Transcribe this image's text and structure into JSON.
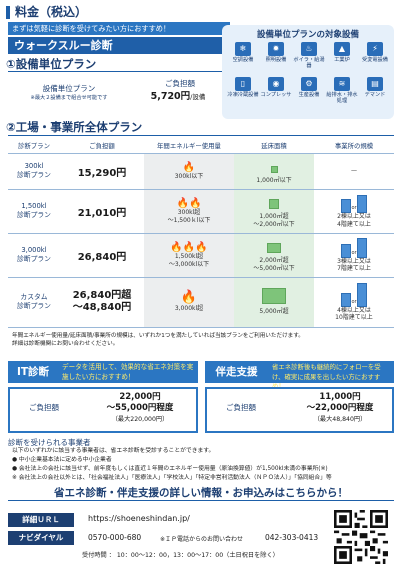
{
  "header": {
    "title": "料金（税込）"
  },
  "intro": "まずは気軽に診断を受けてみたい方におすすめ！",
  "walkthrough_title": "ウォークスルー診断",
  "sec1": {
    "title": "①設備単位プラン",
    "plan_name": "設備単位プラン",
    "plan_note": "※最大２設備まで組合せ可能です",
    "fee_label": "ご負担額",
    "fee": "5,720円",
    "fee_unit": "/設備"
  },
  "equipment": {
    "title": "設備単位プランの対象設備",
    "items": [
      "空調設備",
      "照明設備",
      "ボイラ・給湯器",
      "工業炉",
      "受変電設備",
      "冷凍冷蔵設備",
      "コンプレッサ",
      "生産設備",
      "給排水・排水処理",
      "デマンド"
    ]
  },
  "sec2": {
    "title": "②工場・事業所全体プラン",
    "headers": [
      "診断プラン",
      "ご負担額",
      "年間エネルギー使用量",
      "延床面積",
      "事業所の規模"
    ],
    "rows": [
      {
        "plan": "300kl\n診断プラン",
        "fee": "15,290円",
        "energy": "300kl以下",
        "area": "1,000㎡以下",
        "scale": "—"
      },
      {
        "plan": "1,500kl\n診断プラン",
        "fee": "21,010円",
        "energy": "300kl超\n～1,500ｋl以下",
        "area": "1,000㎡超\n～2,000㎡以下",
        "scale": "2棟以上又は\n4階建て以上"
      },
      {
        "plan": "3,000kl\n診断プラン",
        "fee": "26,840円",
        "energy": "1,500kl超\n～3,000kl以下",
        "area": "2,000㎡超\n～5,000㎡以下",
        "scale": "3棟以上又は\n7階建て以上"
      },
      {
        "plan": "カスタム\n診断プラン",
        "fee": "26,840円超\n～48,840円",
        "energy": "3,000kl超",
        "area": "5,000㎡超",
        "scale": "4棟以上又は\n10階建て以上"
      }
    ],
    "or_text": "or",
    "note": "年間エネルギー使用量/延床面積/事業所の規模は、いずれか1つを満たしていれば当該プランをご利用いただけます。\n詳細は診断機関にお問い合わせください。"
  },
  "it": {
    "tag": "IT診断",
    "desc": "データを活用して、効果的な省エネ対策を実施したい方におすすめ！",
    "fee_label": "ご負担額",
    "fee": "22,000円\n～55,000円程度",
    "max": "（最大220,000円）"
  },
  "bansou": {
    "tag": "伴走支援",
    "desc": "省エネ診断後も継続的にフォローを受け、確実に成果を出したい方におすすめ！",
    "fee_label": "ご負担額",
    "fee": "11,000円\n～22,000円程度",
    "max": "（最大48,840円）"
  },
  "business": {
    "title": "診断を受けられる事業者",
    "text": "以下のいずれかに該当する事業者は、省エネ診断を受診することができます。\n● 中小企業基本法に定める中小企業者\n● 会社法上の会社に該当せず、前年度もしくは直近１年間のエネルギー使用量（原油換算値）が1,500kl未満の事業所(※)\n※ 会社法上の会社以外とは、「社会福祉法人」「医療法人」「学校法人」「特定非営利活動法人（ＮＰＯ法人）」「協同組合」等"
  },
  "contact": {
    "cta": "省エネ診断・伴走支援の詳しい情報・お申込みはこちらから！",
    "url_label": "詳細ＵＲＬ",
    "url": "https://shoeneshindan.jp/",
    "navi_label": "ナビダイヤル",
    "navi_number": "0570-000-680",
    "navi_mid": "※ＩＰ電話からのお問い合わせ",
    "navi_tel": "042-303-0413",
    "hours": "受付時間 ： 10：00～12：00，13：00～17：00（土日祝日を除く）"
  },
  "colors": {
    "brand": "#1d5ea8",
    "accent": "#2b76c2",
    "highlight": "#ffec6b",
    "fire": "#e8572b",
    "area": "#7ec47a"
  }
}
